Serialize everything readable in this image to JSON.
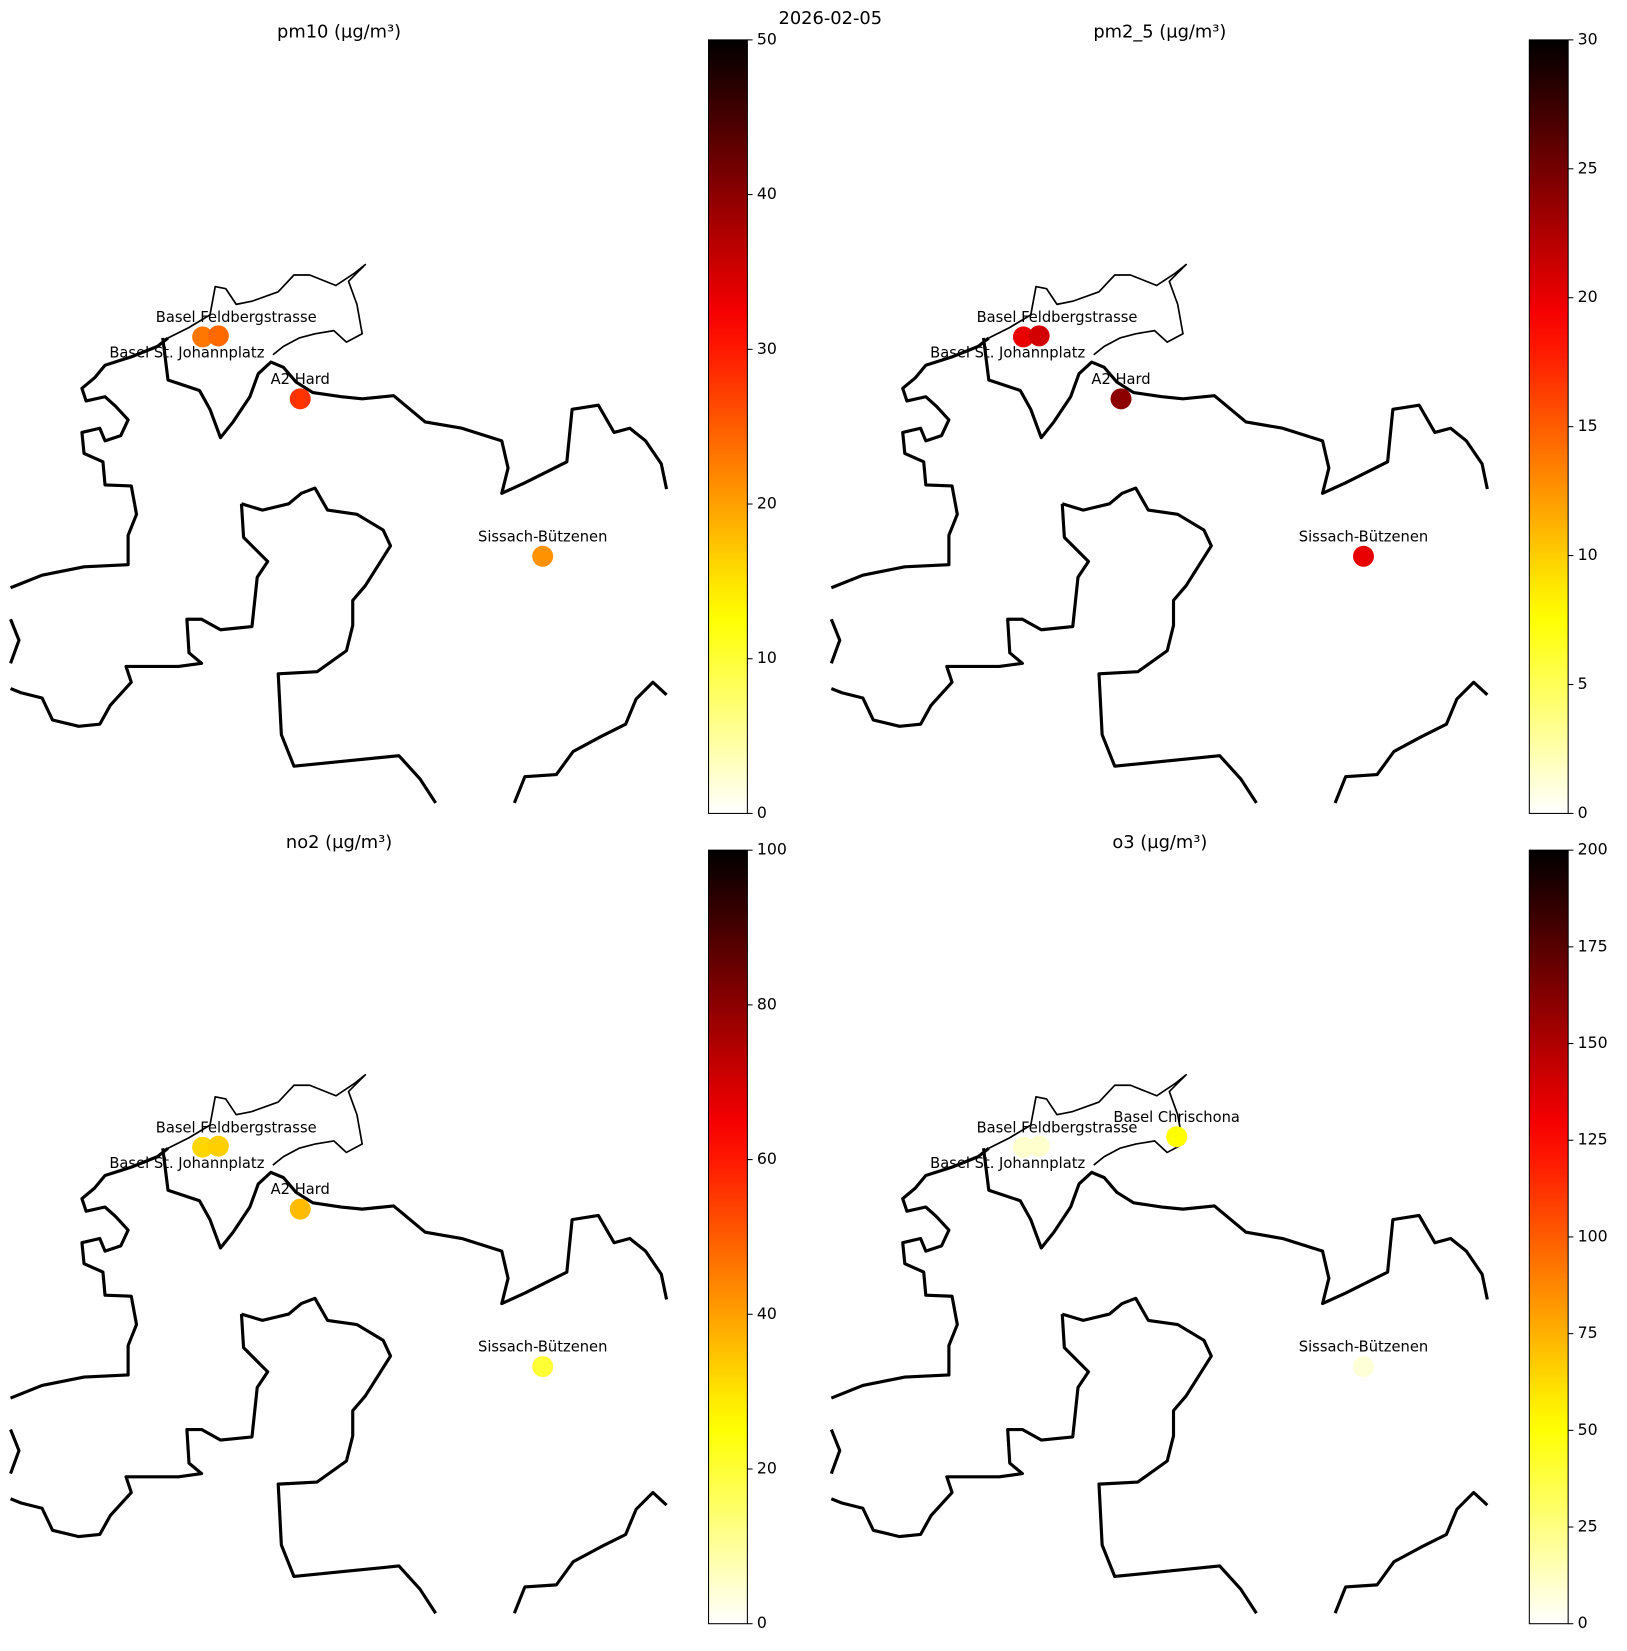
{
  "title": "2026-02-05",
  "chart_data": [
    {
      "type": "map",
      "title": "pm10 (µg/m³)",
      "colormap": "hot_r",
      "stations": [
        "Basel St. Johannplatz",
        "Basel Feldbergstrasse",
        "A2 Hard",
        "Sissach-Bützenen"
      ],
      "values": [
        23,
        24,
        28,
        21
      ],
      "clim": [
        0,
        50
      ],
      "cticks": [
        0,
        10,
        20,
        30,
        40,
        50
      ]
    },
    {
      "type": "map",
      "title": "pm2_5 (µg/m³)",
      "colormap": "hot_r",
      "stations": [
        "Basel St. Johannplatz",
        "Basel Feldbergstrasse",
        "A2 Hard",
        "Sissach-Bützenen"
      ],
      "values": [
        20,
        21,
        24,
        20
      ],
      "clim": [
        0,
        30
      ],
      "cticks": [
        0,
        5,
        10,
        15,
        20,
        25,
        30
      ]
    },
    {
      "type": "map",
      "title": "no2 (µg/m³)",
      "colormap": "hot_r",
      "stations": [
        "Basel St. Johannplatz",
        "Basel Feldbergstrasse",
        "A2 Hard",
        "Sissach-Bützenen"
      ],
      "values": [
        32,
        33,
        36,
        20
      ],
      "clim": [
        0,
        100
      ],
      "cticks": [
        0,
        20,
        40,
        60,
        80,
        100
      ]
    },
    {
      "type": "map",
      "title": "o3 (µg/m³)",
      "colormap": "hot_r",
      "stations": [
        "Basel St. Johannplatz",
        "Basel Feldbergstrasse",
        "Basel Chrischona",
        "Sissach-Bützenen"
      ],
      "values": [
        10,
        10,
        52,
        8
      ],
      "clim": [
        0,
        200
      ],
      "cticks": [
        0,
        25,
        50,
        75,
        100,
        125,
        150,
        175,
        200
      ]
    }
  ]
}
